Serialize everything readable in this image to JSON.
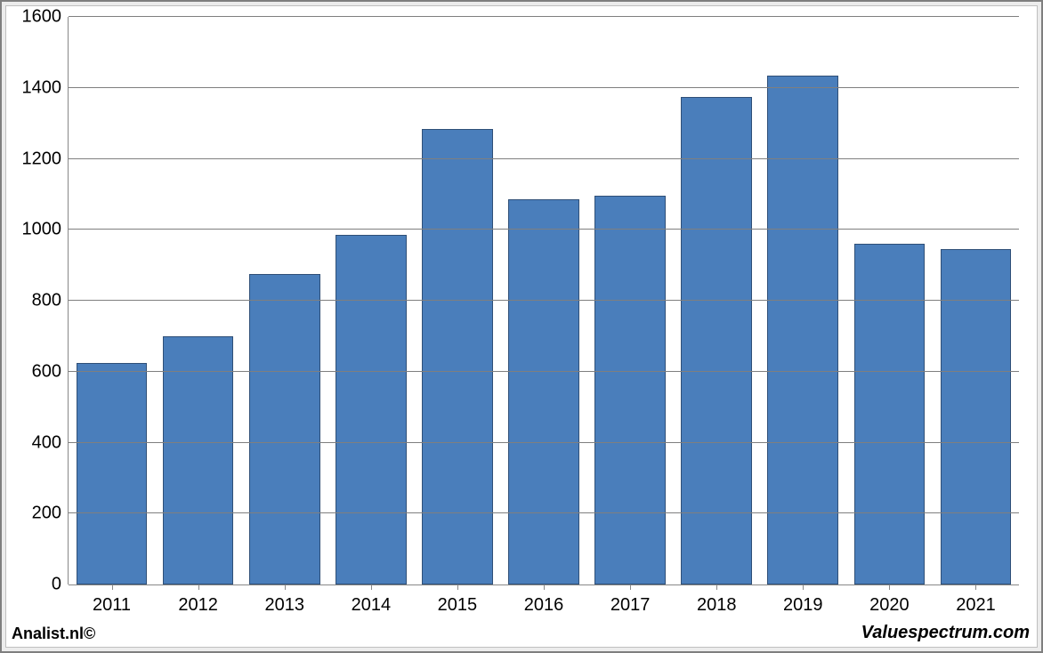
{
  "chart": {
    "type": "bar",
    "categories": [
      "2011",
      "2012",
      "2013",
      "2014",
      "2015",
      "2016",
      "2017",
      "2018",
      "2019",
      "2020",
      "2021"
    ],
    "values": [
      625,
      700,
      875,
      985,
      1285,
      1085,
      1095,
      1375,
      1435,
      960,
      945
    ],
    "bar_color": "#4a7ebb",
    "bar_border_color": "#2f4f77",
    "ylim": [
      0,
      1600
    ],
    "ytick_step": 200,
    "yticks": [
      0,
      200,
      400,
      600,
      800,
      1000,
      1200,
      1400,
      1600
    ],
    "grid_color": "#7f7f7f",
    "axis_color": "#808080",
    "background_color": "#ffffff",
    "frame_bg": "#ececec",
    "label_fontsize": 20,
    "bar_width_ratio": 0.82
  },
  "footer": {
    "left": "Analist.nl©",
    "right": "Valuespectrum.com"
  }
}
